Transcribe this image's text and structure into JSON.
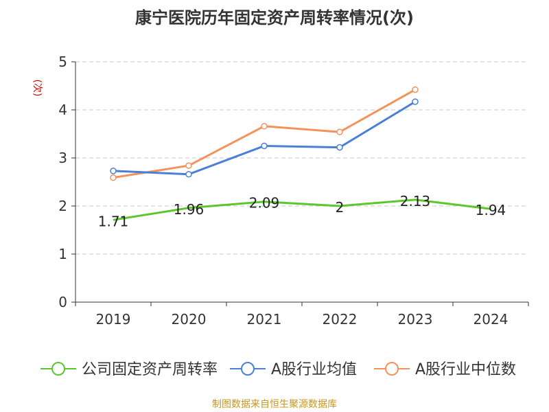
{
  "chart_data": {
    "type": "line",
    "title": "康宁医院历年固定资产周转率情况(次)",
    "ylabel": "(次)",
    "xlabel": "",
    "ylim": [
      0,
      5
    ],
    "yticks": [
      0,
      1,
      2,
      3,
      4,
      5
    ],
    "categories": [
      "2019",
      "2020",
      "2021",
      "2022",
      "2023",
      "2024"
    ],
    "grid": true,
    "legend_position": "bottom",
    "series": [
      {
        "name": "公司固定资产周转率",
        "color": "#5cc72a",
        "values": [
          1.71,
          1.96,
          2.09,
          2,
          2.13,
          1.94
        ],
        "labels": [
          "1.71",
          "1.96",
          "2.09",
          "2",
          "2.13",
          "1.94"
        ],
        "show_labels": true,
        "show_markers": false
      },
      {
        "name": "A股行业均值",
        "color": "#4a7fd6",
        "values": [
          2.73,
          2.66,
          3.25,
          3.22,
          4.17,
          null
        ],
        "show_labels": false,
        "show_markers": true
      },
      {
        "name": "A股行业中位数",
        "color": "#f5915a",
        "values": [
          2.59,
          2.84,
          3.66,
          3.54,
          4.42,
          null
        ],
        "show_labels": false,
        "show_markers": true
      }
    ]
  },
  "source": "制图数据来自恒生聚源数据库"
}
